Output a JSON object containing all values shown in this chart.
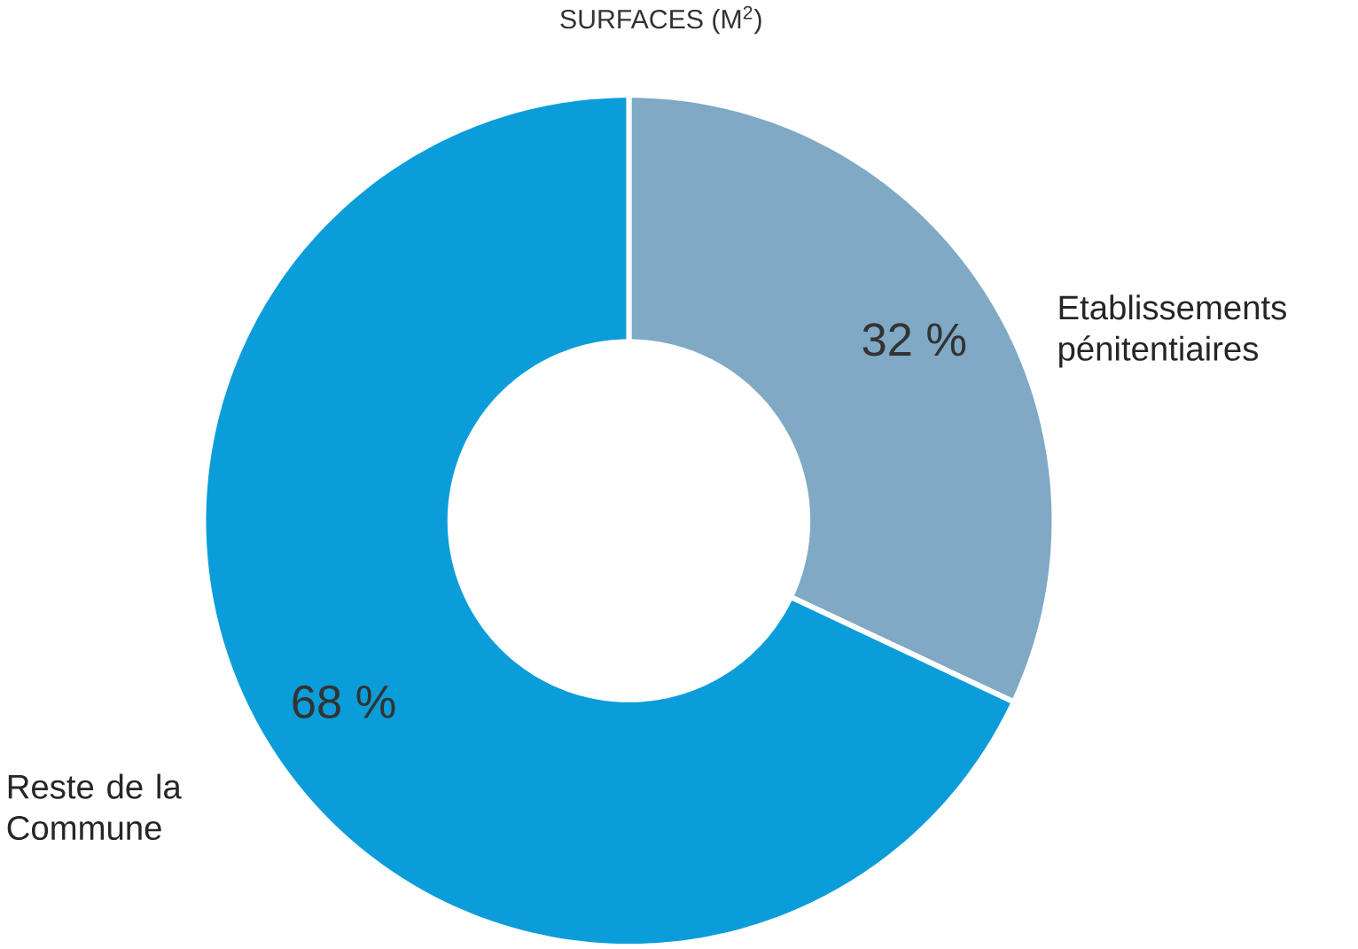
{
  "chart_data": {
    "type": "donut",
    "title": "SURFACES (M$^{2}$)",
    "categories": [
      "Etablissements pénitentiaires",
      "Reste de la Commune"
    ],
    "values": [
      32,
      68
    ],
    "colors": [
      "#7fa9c4",
      "#0b9dd9"
    ],
    "value_labels": [
      "32 %",
      "68 %"
    ]
  }
}
